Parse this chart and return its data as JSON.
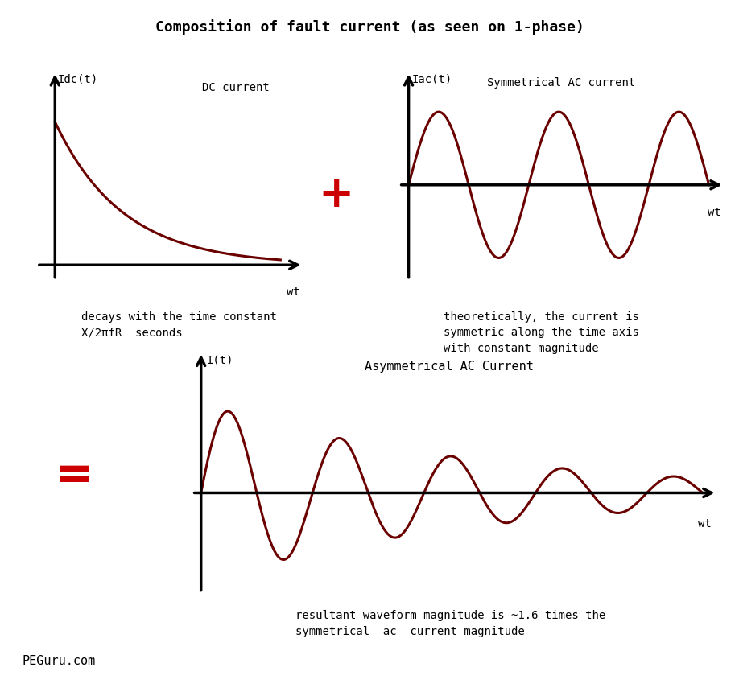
{
  "title": "Composition of fault current (as seen on 1-phase)",
  "title_fontsize": 13,
  "background_color": "#ffffff",
  "curve_color": "#6b0000",
  "axis_color": "#000000",
  "dc_label": "Idc(t)",
  "ac_label": "Iac(t)",
  "asym_label": "I(t)",
  "wt_label": "wt",
  "dc_title": "DC current",
  "ac_title": "Symmetrical AC current",
  "asym_title": "Asymmetrical AC Current",
  "dc_note": "decays with the time constant\nX/2πfR  seconds",
  "ac_note": "theoretically, the current is\nsymmetric along the time axis\nwith constant magnitude",
  "asym_note": "resultant waveform magnitude is ~1.6 times the\nsymmetrical  ac  current magnitude",
  "footer": "PEGuru.com",
  "plus_color": "#cc0000",
  "equals_color": "#cc0000",
  "lw_axis": 2.5,
  "lw_curve": 2.2
}
